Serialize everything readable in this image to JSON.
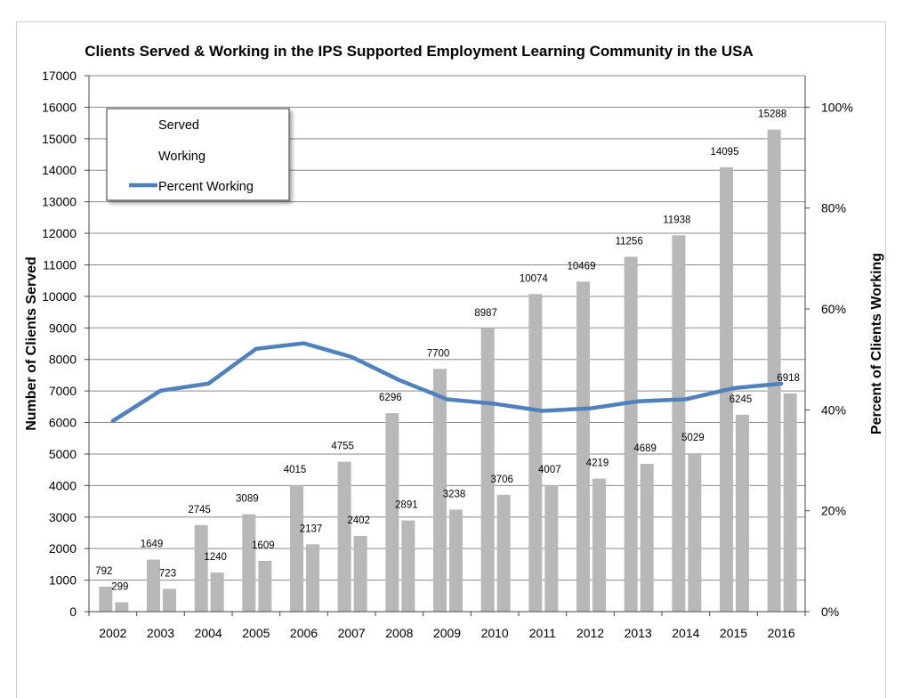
{
  "chart_data": {
    "type": "bar",
    "title": "Clients Served & Working in the IPS Supported Employment Learning Community in the USA",
    "ylabel": "Number of Clients Served",
    "y2label": "Percent of Clients Working",
    "categories": [
      "2002",
      "2003",
      "2004",
      "2005",
      "2006",
      "2007",
      "2008",
      "2009",
      "2010",
      "2011",
      "2012",
      "2013",
      "2014",
      "2015",
      "2016"
    ],
    "ylim": [
      0,
      17000
    ],
    "y_ticks": [
      0,
      1000,
      2000,
      3000,
      4000,
      5000,
      6000,
      7000,
      8000,
      9000,
      10000,
      11000,
      12000,
      13000,
      14000,
      15000,
      16000,
      17000
    ],
    "y2_ticks": [
      "0%",
      "20%",
      "40%",
      "60%",
      "80%",
      "100%"
    ],
    "y2_values": [
      0,
      20,
      40,
      60,
      80,
      100
    ],
    "y2_top": 100,
    "y2_max_value": 16000,
    "series": [
      {
        "name": "Served",
        "kind": "bar",
        "values": [
          792,
          1649,
          2745,
          3089,
          4015,
          4755,
          6296,
          7700,
          8987,
          10074,
          10469,
          11256,
          11938,
          14095,
          15288
        ],
        "color": "#b8b8b8"
      },
      {
        "name": "Working",
        "kind": "bar",
        "values": [
          299,
          723,
          1240,
          1609,
          2137,
          2402,
          2891,
          3238,
          3706,
          4007,
          4219,
          4689,
          5029,
          6245,
          6918
        ],
        "color": "#b8b8b8"
      },
      {
        "name": "Percent Working",
        "kind": "line",
        "axis": "secondary",
        "values": [
          37.8,
          43.8,
          45.2,
          52.1,
          53.2,
          50.5,
          45.9,
          42.1,
          41.2,
          39.8,
          40.3,
          41.7,
          42.1,
          44.3,
          45.2
        ],
        "color": "#4f81bd"
      }
    ],
    "grid": true,
    "legend": "top-left"
  }
}
